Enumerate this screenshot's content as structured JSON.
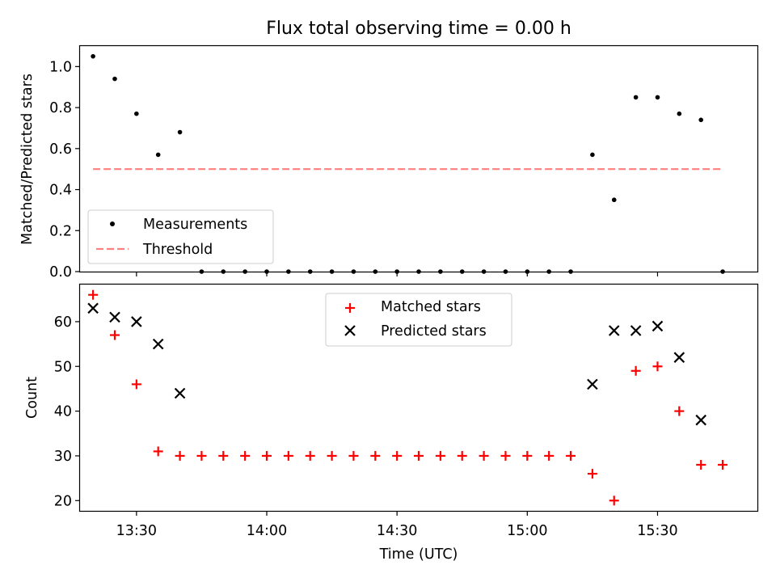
{
  "chart_data": [
    {
      "type": "scatter",
      "title": "Flux total observing time = 0.00 h",
      "xlabel": "",
      "ylabel": "Matched/Predicted stars",
      "xlim": [
        13.2833,
        15.8833
      ],
      "ylim": [
        0.0,
        1.1
      ],
      "yticks": [
        0.0,
        0.2,
        0.4,
        0.6,
        0.8,
        1.0
      ],
      "ytick_labels": [
        "0.0",
        "0.2",
        "0.4",
        "0.6",
        "0.8",
        "1.0"
      ],
      "x": [
        "13:20",
        "13:25",
        "13:30",
        "13:35",
        "13:40",
        "13:45",
        "13:50",
        "13:55",
        "14:00",
        "14:05",
        "14:10",
        "14:15",
        "14:20",
        "14:25",
        "14:30",
        "14:35",
        "14:40",
        "14:45",
        "14:50",
        "14:55",
        "15:00",
        "15:05",
        "15:10",
        "15:15",
        "15:20",
        "15:25",
        "15:30",
        "15:35",
        "15:40",
        "15:45"
      ],
      "x_hours": [
        13.3333,
        13.4167,
        13.5,
        13.5833,
        13.6667,
        13.75,
        13.8333,
        13.9167,
        14.0,
        14.0833,
        14.1667,
        14.25,
        14.3333,
        14.4167,
        14.5,
        14.5833,
        14.6667,
        14.75,
        14.8333,
        14.9167,
        15.0,
        15.0833,
        15.1667,
        15.25,
        15.3333,
        15.4167,
        15.5,
        15.5833,
        15.6667,
        15.75
      ],
      "series": [
        {
          "name": "Measurements",
          "marker": "dot",
          "color": "#000000",
          "values": [
            1.05,
            0.94,
            0.77,
            0.57,
            0.68,
            0,
            0,
            0,
            0,
            0,
            0,
            0,
            0,
            0,
            0,
            0,
            0,
            0,
            0,
            0,
            0,
            0,
            0,
            0.57,
            0.35,
            0.85,
            0.85,
            0.77,
            0.74,
            0
          ]
        },
        {
          "name": "Threshold",
          "marker": "dashed-line",
          "color": "#ff7f7f",
          "x_range_hours": [
            13.3333,
            15.75
          ],
          "value": 0.5
        }
      ],
      "legend": "lower-left"
    },
    {
      "type": "scatter",
      "xlabel": "Time (UTC)",
      "ylabel": "Count",
      "xlim": [
        13.2833,
        15.8833
      ],
      "ylim": [
        17.7,
        68.3
      ],
      "yticks": [
        20,
        30,
        40,
        50,
        60
      ],
      "ytick_labels": [
        "20",
        "30",
        "40",
        "50",
        "60"
      ],
      "xticks_hours": [
        13.5,
        14.0,
        14.5,
        15.0,
        15.5
      ],
      "xtick_labels": [
        "13:30",
        "14:00",
        "14:30",
        "15:00",
        "15:30"
      ],
      "x_hours": [
        13.3333,
        13.4167,
        13.5,
        13.5833,
        13.6667,
        13.75,
        13.8333,
        13.9167,
        14.0,
        14.0833,
        14.1667,
        14.25,
        14.3333,
        14.4167,
        14.5,
        14.5833,
        14.6667,
        14.75,
        14.8333,
        14.9167,
        15.0,
        15.0833,
        15.1667,
        15.25,
        15.3333,
        15.4167,
        15.5,
        15.5833,
        15.6667,
        15.75
      ],
      "series": [
        {
          "name": "Matched stars",
          "marker": "plus",
          "color": "#ff0000",
          "values": [
            66,
            57,
            46,
            31,
            30,
            30,
            30,
            30,
            30,
            30,
            30,
            30,
            30,
            30,
            30,
            30,
            30,
            30,
            30,
            30,
            30,
            30,
            30,
            26,
            20,
            49,
            50,
            40,
            28,
            28
          ]
        },
        {
          "name": "Predicted stars",
          "marker": "x",
          "color": "#000000",
          "values": [
            63,
            61,
            60,
            55,
            44,
            null,
            null,
            null,
            null,
            null,
            null,
            null,
            null,
            null,
            null,
            null,
            null,
            null,
            null,
            null,
            null,
            null,
            null,
            46,
            58,
            58,
            59,
            52,
            38,
            null
          ]
        }
      ],
      "legend": "upper-center"
    }
  ]
}
